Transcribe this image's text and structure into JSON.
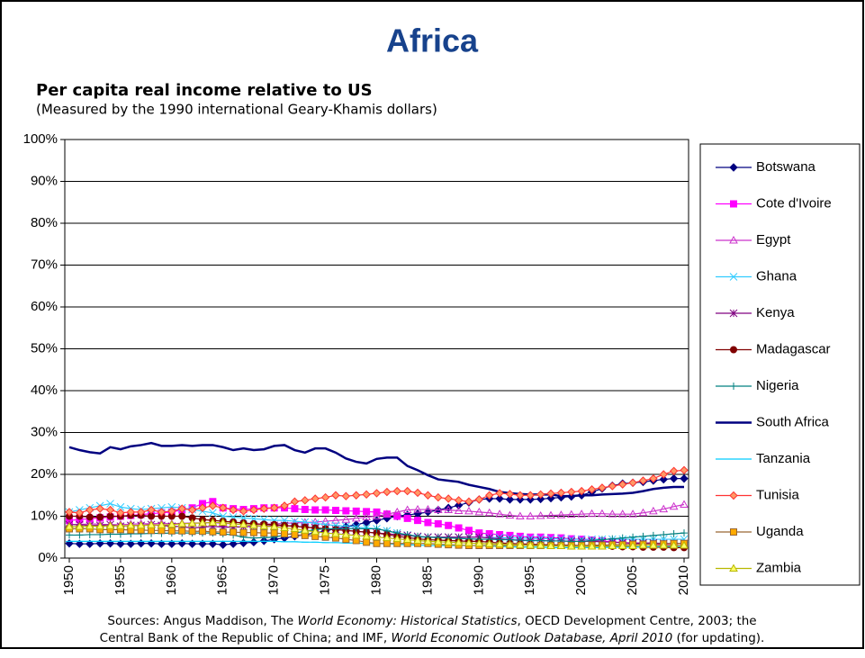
{
  "chart_data": {
    "type": "line",
    "title": "Africa",
    "subtitle": "Per capita real income relative to US",
    "note": "(Measured by the 1990 international Geary-Khamis dollars)",
    "sources": [
      [
        {
          "text": "Sources: Angus Maddison, The ",
          "italic": false
        },
        {
          "text": "World Economy: Historical Statistics",
          "italic": true
        },
        {
          "text": ", OECD Development Centre, 2003; the",
          "italic": false
        }
      ],
      [
        {
          "text": "Central Bank of the Republic of China; and IMF, ",
          "italic": false
        },
        {
          "text": "World Economic Outlook Database, April 2010",
          "italic": true
        },
        {
          "text": " (for updating).",
          "italic": false
        }
      ]
    ],
    "x": [
      1950,
      1951,
      1952,
      1953,
      1954,
      1955,
      1956,
      1957,
      1958,
      1959,
      1960,
      1961,
      1962,
      1963,
      1964,
      1965,
      1966,
      1967,
      1968,
      1969,
      1970,
      1971,
      1972,
      1973,
      1974,
      1975,
      1976,
      1977,
      1978,
      1979,
      1980,
      1981,
      1982,
      1983,
      1984,
      1985,
      1986,
      1987,
      1988,
      1989,
      1990,
      1991,
      1992,
      1993,
      1994,
      1995,
      1996,
      1997,
      1998,
      1999,
      2000,
      2001,
      2002,
      2003,
      2004,
      2005,
      2006,
      2007,
      2008,
      2009,
      2010
    ],
    "xlim": [
      1950,
      2010
    ],
    "xticks": [
      1950,
      1955,
      1960,
      1965,
      1970,
      1975,
      1980,
      1985,
      1990,
      1995,
      2000,
      2005,
      2010
    ],
    "ylim": [
      0,
      100
    ],
    "yticks": [
      {
        "value": 0,
        "label": "0%"
      },
      {
        "value": 10,
        "label": "10%"
      },
      {
        "value": 20,
        "label": "20%"
      },
      {
        "value": 30,
        "label": "30%"
      },
      {
        "value": 40,
        "label": "40%"
      },
      {
        "value": 50,
        "label": "50%"
      },
      {
        "value": 60,
        "label": "60%"
      },
      {
        "value": 70,
        "label": "70%"
      },
      {
        "value": 80,
        "label": "80%"
      },
      {
        "value": 90,
        "label": "90%"
      },
      {
        "value": 100,
        "label": "100%"
      }
    ],
    "grid": true,
    "legend": "right",
    "series": [
      {
        "name": "Botswana",
        "color": "#000080",
        "marker": "diamond",
        "values": [
          3.5,
          3.4,
          3.4,
          3.5,
          3.5,
          3.4,
          3.4,
          3.5,
          3.5,
          3.4,
          3.4,
          3.5,
          3.4,
          3.4,
          3.4,
          3.2,
          3.4,
          3.6,
          3.8,
          4.1,
          4.5,
          4.8,
          5.2,
          5.6,
          6,
          6.5,
          7,
          7.5,
          8,
          8.5,
          9,
          9.5,
          10,
          10.3,
          10.6,
          11,
          11.5,
          12,
          12.6,
          13.3,
          14,
          14.2,
          14.2,
          14,
          14,
          14,
          14.1,
          14.3,
          14.5,
          14.7,
          15,
          15.8,
          16.6,
          17.3,
          17.8,
          18,
          18.2,
          18.5,
          18.8,
          19,
          19
        ]
      },
      {
        "name": "Cote d'Ivoire",
        "color": "#ff00ff",
        "marker": "square",
        "values": [
          9,
          9.2,
          9.4,
          9.6,
          9.8,
          10,
          10.2,
          10.4,
          10.6,
          10.8,
          11,
          11.5,
          12,
          13,
          13.5,
          12,
          11.8,
          11.6,
          11.8,
          12,
          12,
          12,
          11.8,
          11.6,
          11.5,
          11.5,
          11.4,
          11.3,
          11.2,
          11.1,
          11,
          10.5,
          10,
          9.5,
          9,
          8.5,
          8.2,
          7.8,
          7.2,
          6.6,
          6,
          5.8,
          5.6,
          5.4,
          5.2,
          5,
          5,
          4.9,
          4.8,
          4.6,
          4.5,
          4.3,
          4.1,
          3.9,
          3.7,
          3.5,
          3.4,
          3.3,
          3.2,
          3.1,
          3
        ]
      },
      {
        "name": "Egypt",
        "color": "#cc33cc",
        "marker": "triangle",
        "values": [
          8,
          8,
          8.2,
          8.1,
          8,
          8,
          8.1,
          8.2,
          8.2,
          8.3,
          8.2,
          8.3,
          8.4,
          8.4,
          8.5,
          8.3,
          8.2,
          8,
          8,
          8.1,
          8.2,
          8.3,
          8.4,
          8.5,
          8.6,
          8.8,
          9,
          9.2,
          9.5,
          9.8,
          10,
          10.5,
          11,
          11.5,
          11.6,
          11.6,
          11.5,
          11.5,
          11.3,
          11.2,
          11,
          10.8,
          10.5,
          10.2,
          10,
          10,
          10.1,
          10.2,
          10.3,
          10.4,
          10.5,
          10.6,
          10.6,
          10.5,
          10.5,
          10.5,
          10.8,
          11.2,
          11.7,
          12.3,
          12.8
        ]
      },
      {
        "name": "Ghana",
        "color": "#33ccff",
        "marker": "x",
        "values": [
          11,
          11.5,
          12,
          12.5,
          13,
          12.2,
          11.8,
          11.6,
          11.8,
          12,
          12.2,
          12,
          11.6,
          11.2,
          10.8,
          10,
          9.8,
          9.6,
          9.4,
          9.2,
          9,
          9,
          8.8,
          8.6,
          8.3,
          8,
          7.8,
          7.6,
          7.4,
          7.2,
          7,
          6.5,
          6,
          5.5,
          5,
          5,
          5,
          5,
          5,
          5,
          5,
          4.9,
          4.9,
          4.8,
          4.8,
          4.7,
          4.7,
          4.6,
          4.6,
          4.5,
          4.5,
          4.5,
          4.5,
          4.5,
          4.5,
          4.5,
          4.5,
          4.5,
          4.5,
          4.5,
          4.5
        ]
      },
      {
        "name": "Kenya",
        "color": "#800080",
        "marker": "star",
        "values": [
          8,
          8,
          7.8,
          7.8,
          8,
          7.6,
          7.8,
          7.8,
          8,
          7.8,
          7.6,
          7.5,
          7.2,
          7.4,
          7.6,
          7.4,
          7.4,
          7.5,
          7.6,
          7.7,
          7.8,
          7.8,
          7.6,
          7.4,
          7.2,
          7,
          6.8,
          6.6,
          6.4,
          6.2,
          6,
          5.8,
          5.6,
          5.4,
          5.2,
          5,
          5,
          5,
          5,
          5,
          5,
          4.8,
          4.6,
          4.4,
          4.2,
          4.2,
          4.2,
          4.1,
          4.1,
          4,
          4,
          4,
          3.9,
          3.8,
          3.7,
          3.6,
          3.6,
          3.6,
          3.5,
          3.5,
          3.5
        ]
      },
      {
        "name": "Madagascar",
        "color": "#800000",
        "marker": "circle",
        "values": [
          10,
          10,
          9.8,
          9.8,
          10,
          10,
          10.2,
          10.2,
          10,
          10,
          10,
          10,
          9.6,
          9.2,
          9,
          8.8,
          8.6,
          8.4,
          8.2,
          8.1,
          8,
          7.8,
          7.6,
          7.4,
          7.2,
          7,
          6.8,
          6.6,
          6.4,
          6.2,
          6,
          5.6,
          5.2,
          4.9,
          4.6,
          4.4,
          4.3,
          4.2,
          4.1,
          4,
          4,
          3.8,
          3.6,
          3.5,
          3.4,
          3.3,
          3.2,
          3.2,
          3.1,
          3.1,
          3,
          3,
          2.9,
          2.8,
          2.7,
          2.7,
          2.6,
          2.6,
          2.6,
          2.5,
          2.5
        ]
      },
      {
        "name": "Nigeria",
        "color": "#008080",
        "marker": "plus",
        "values": [
          5.5,
          5.5,
          5.6,
          5.6,
          5.7,
          5.7,
          5.8,
          5.8,
          5.9,
          5.9,
          6,
          6,
          6,
          6,
          6,
          5.8,
          5.5,
          5,
          4.8,
          4.9,
          5,
          5.5,
          6,
          6.4,
          6.8,
          7,
          7,
          7,
          7,
          7,
          7,
          6.5,
          6,
          5.6,
          5.2,
          5,
          4.9,
          4.8,
          4.7,
          4.6,
          4.5,
          4.5,
          4.4,
          4.4,
          4.3,
          4.2,
          4.2,
          4.1,
          4.1,
          4,
          4,
          4.2,
          4.4,
          4.6,
          4.8,
          5,
          5.2,
          5.4,
          5.6,
          5.8,
          6
        ]
      },
      {
        "name": "South Africa",
        "color": "#000080",
        "marker": "none",
        "values": [
          26.5,
          25.8,
          25.3,
          25,
          26.5,
          26,
          26.7,
          27,
          27.5,
          26.8,
          26.8,
          27,
          26.8,
          27,
          27,
          26.5,
          25.8,
          26.2,
          25.8,
          26,
          26.8,
          27,
          25.8,
          25.2,
          26.2,
          26.2,
          25.2,
          23.8,
          23,
          22.6,
          23.7,
          24,
          24,
          22,
          21,
          19.8,
          18.8,
          18.5,
          18.2,
          17.5,
          17,
          16.5,
          15.8,
          15.5,
          15.3,
          15.2,
          15.2,
          15.2,
          14.8,
          14.8,
          15,
          15,
          15.2,
          15.3,
          15.4,
          15.6,
          16,
          16.5,
          16.8,
          17,
          17
        ]
      },
      {
        "name": "Tanzania",
        "color": "#00ccff",
        "marker": "dash",
        "values": [
          4,
          4,
          4,
          4,
          4,
          4,
          4,
          4,
          4,
          4,
          4,
          4,
          4,
          4,
          4,
          4,
          4,
          4,
          4,
          4,
          4,
          3.9,
          3.9,
          3.8,
          3.8,
          3.7,
          3.7,
          3.6,
          3.6,
          3.5,
          3.5,
          3.4,
          3.3,
          3.2,
          3.1,
          3,
          3,
          3,
          3,
          3,
          3,
          2.9,
          2.8,
          2.7,
          2.6,
          2.6,
          2.6,
          2.5,
          2.5,
          2.5,
          2.5,
          2.5,
          2.5,
          2.6,
          2.6,
          2.6,
          2.7,
          2.7,
          2.8,
          2.8,
          2.8
        ]
      },
      {
        "name": "Tunisia",
        "color": "#ff3333",
        "marker": "diamond-open",
        "values": [
          11,
          10.8,
          11.5,
          11.8,
          11.5,
          10.8,
          11,
          11,
          11.5,
          11,
          11.2,
          11.8,
          11.5,
          12,
          12.5,
          12,
          11.5,
          11.2,
          11.5,
          11.8,
          12,
          12.5,
          13.5,
          13.8,
          14.2,
          14.5,
          15,
          14.8,
          15,
          15.2,
          15.5,
          15.8,
          16,
          16,
          15.6,
          15,
          14.5,
          14.2,
          13.8,
          13.5,
          14,
          15,
          15.5,
          15.3,
          15,
          15,
          15.2,
          15.4,
          15.6,
          15.8,
          16,
          16.4,
          16.8,
          17.2,
          17.6,
          18,
          18.5,
          19,
          20,
          20.8,
          21
        ]
      },
      {
        "name": "Uganda",
        "color": "#996633",
        "marker": "square-orange",
        "values": [
          7,
          7,
          7,
          6.8,
          6.8,
          6.8,
          6.7,
          6.7,
          6.6,
          6.6,
          6.5,
          6.5,
          6.4,
          6.4,
          6.3,
          6.2,
          6.2,
          6.1,
          6.1,
          6,
          6,
          5.8,
          5.6,
          5.4,
          5.2,
          5,
          4.8,
          4.5,
          4.2,
          3.8,
          3.5,
          3.5,
          3.5,
          3.5,
          3.5,
          3.5,
          3.3,
          3.2,
          3.1,
          3,
          3,
          3,
          3,
          3,
          3,
          3,
          3,
          3,
          3,
          3,
          3,
          3.1,
          3.1,
          3.2,
          3.2,
          3.3,
          3.3,
          3.4,
          3.4,
          3.5,
          3.5
        ]
      },
      {
        "name": "Zambia",
        "color": "#b8b800",
        "marker": "triangle-yellow",
        "values": [
          7.5,
          7.5,
          7.6,
          7.6,
          7.7,
          7.7,
          7.8,
          7.8,
          7.9,
          7.9,
          8,
          8.2,
          8.3,
          8.4,
          8.5,
          8.5,
          8.2,
          8,
          7.8,
          7.6,
          7.5,
          7.2,
          7,
          6.6,
          6.3,
          6,
          5.8,
          5.6,
          5.4,
          5.2,
          5,
          4.8,
          4.6,
          4.4,
          4.2,
          4,
          3.9,
          3.8,
          3.7,
          3.6,
          3.5,
          3.4,
          3.3,
          3.2,
          3.1,
          3,
          3,
          2.9,
          2.9,
          2.8,
          2.8,
          2.8,
          2.8,
          2.9,
          2.9,
          2.9,
          3,
          3,
          3,
          3,
          3
        ]
      }
    ]
  }
}
